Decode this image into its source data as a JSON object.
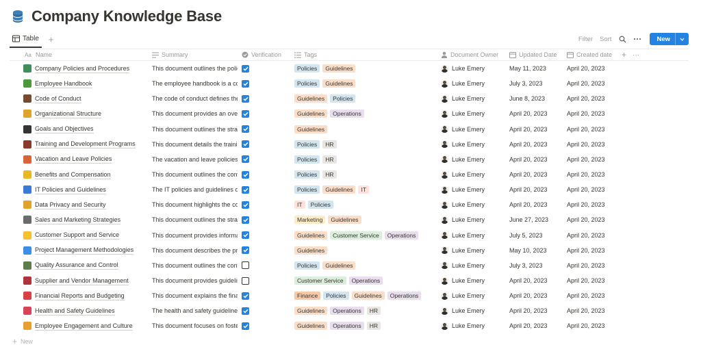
{
  "page": {
    "title": "Company Knowledge Base",
    "icon": "database-icon"
  },
  "viewbar": {
    "tab_label": "Table",
    "add_view": "+",
    "filter": "Filter",
    "sort": "Sort",
    "new_label": "New",
    "new_caret": "⌄"
  },
  "columns": {
    "name": "Name",
    "summary": "Summary",
    "verification": "Verification",
    "tags": "Tags",
    "owner": "Document Owner",
    "updated": "Updated Date",
    "created": "Created date",
    "add": "+",
    "more": "···"
  },
  "tag_colors": {
    "Policies": "#d3e5ef",
    "Guidelines": "#fadec9",
    "Operations": "#e8deee",
    "HR": "#e9e5e3",
    "IT": "#ffe2dd",
    "Marketing": "#fdecc8",
    "Customer Service": "#dbeddb",
    "Finance": "#f5c8a8"
  },
  "rows": [
    {
      "name": "Company Policies and Procedures",
      "emoji_color": "#3f8f5a",
      "summary": "This document outlines the policies",
      "verified": true,
      "tags": [
        "Policies",
        "Guidelines"
      ],
      "owner": "Luke Emery",
      "updated": "May 11, 2023",
      "created": "April 20, 2023"
    },
    {
      "name": "Employee Handbook",
      "emoji_color": "#4e9a3b",
      "summary": "The employee handbook is a comprehensive",
      "verified": true,
      "tags": [
        "Policies",
        "Guidelines"
      ],
      "owner": "Luke Emery",
      "updated": "July 3, 2023",
      "created": "April 20, 2023"
    },
    {
      "name": "Code of Conduct",
      "emoji_color": "#7a4a2e",
      "summary": "The code of conduct defines the",
      "verified": true,
      "tags": [
        "Guidelines",
        "Policies"
      ],
      "owner": "Luke Emery",
      "updated": "June 8, 2023",
      "created": "April 20, 2023"
    },
    {
      "name": "Organizational Structure",
      "emoji_color": "#e0a32b",
      "summary": "This document provides an overview",
      "verified": true,
      "tags": [
        "Guidelines",
        "Operations"
      ],
      "owner": "Luke Emery",
      "updated": "April 20, 2023",
      "created": "April 20, 2023"
    },
    {
      "name": "Goals and Objectives",
      "emoji_color": "#333333",
      "summary": "This document outlines the strategic",
      "verified": true,
      "tags": [
        "Guidelines"
      ],
      "owner": "Luke Emery",
      "updated": "April 20, 2023",
      "created": "April 20, 2023"
    },
    {
      "name": "Training and Development Programs",
      "emoji_color": "#8a3b2a",
      "summary": "This document details the training",
      "verified": true,
      "tags": [
        "Policies",
        "HR"
      ],
      "owner": "Luke Emery",
      "updated": "April 20, 2023",
      "created": "April 20, 2023"
    },
    {
      "name": "Vacation and Leave Policies",
      "emoji_color": "#d9643a",
      "summary": "The vacation and leave policies",
      "verified": true,
      "tags": [
        "Policies",
        "HR"
      ],
      "owner": "Luke Emery",
      "updated": "April 20, 2023",
      "created": "April 20, 2023"
    },
    {
      "name": "Benefits and Compensation",
      "emoji_color": "#e8b923",
      "summary": "This document outlines the compensation",
      "verified": true,
      "tags": [
        "Policies",
        "HR"
      ],
      "owner": "Luke Emery",
      "updated": "April 20, 2023",
      "created": "April 20, 2023"
    },
    {
      "name": "IT Policies and Guidelines",
      "emoji_color": "#3a7bd5",
      "summary": "The IT policies and guidelines outline",
      "verified": true,
      "tags": [
        "Policies",
        "Guidelines",
        "IT"
      ],
      "owner": "Luke Emery",
      "updated": "April 20, 2023",
      "created": "April 20, 2023"
    },
    {
      "name": "Data Privacy and Security",
      "emoji_color": "#e0a32b",
      "summary": "This document highlights the company",
      "verified": true,
      "tags": [
        "IT",
        "Policies"
      ],
      "owner": "Luke Emery",
      "updated": "April 20, 2023",
      "created": "April 20, 2023"
    },
    {
      "name": "Sales and Marketing Strategies",
      "emoji_color": "#6b6b6b",
      "summary": "This document outlines the strategies",
      "verified": true,
      "tags": [
        "Marketing",
        "Guidelines"
      ],
      "owner": "Luke Emery",
      "updated": "June 27, 2023",
      "created": "April 20, 2023"
    },
    {
      "name": "Customer Support and Service",
      "emoji_color": "#f2c230",
      "summary": "This document provides information",
      "verified": true,
      "tags": [
        "Guidelines",
        "Customer Service",
        "Operations"
      ],
      "owner": "Luke Emery",
      "updated": "July 5, 2023",
      "created": "April 20, 2023"
    },
    {
      "name": "Project Management Methodologies",
      "emoji_color": "#3a8ee6",
      "summary": "This document describes the project",
      "verified": true,
      "tags": [
        "Guidelines"
      ],
      "owner": "Luke Emery",
      "updated": "May 10, 2023",
      "created": "April 20, 2023"
    },
    {
      "name": "Quality Assurance and Control",
      "emoji_color": "#5a7d4a",
      "summary": "This document outlines the controls",
      "verified": false,
      "tags": [
        "Policies",
        "Guidelines"
      ],
      "owner": "Luke Emery",
      "updated": "July 3, 2023",
      "created": "April 20, 2023"
    },
    {
      "name": "Supplier and Vendor Management",
      "emoji_color": "#b0323a",
      "summary": "This document provides guidelines",
      "verified": false,
      "tags": [
        "Customer Service",
        "Operations"
      ],
      "owner": "Luke Emery",
      "updated": "April 20, 2023",
      "created": "April 20, 2023"
    },
    {
      "name": "Financial Reports and Budgeting",
      "emoji_color": "#d94040",
      "summary": "This document explains the financial",
      "verified": true,
      "tags": [
        "Finance",
        "Policies",
        "Guidelines",
        "Operations"
      ],
      "owner": "Luke Emery",
      "updated": "April 20, 2023",
      "created": "April 20, 2023"
    },
    {
      "name": "Health and Safety Guidelines",
      "emoji_color": "#d9445a",
      "summary": "The health and safety guidelines",
      "verified": true,
      "tags": [
        "Guidelines",
        "Operations",
        "HR"
      ],
      "owner": "Luke Emery",
      "updated": "April 20, 2023",
      "created": "April 20, 2023"
    },
    {
      "name": "Employee Engagement and Culture",
      "emoji_color": "#e8a030",
      "summary": "This document focuses on fostering",
      "verified": true,
      "tags": [
        "Guidelines",
        "Operations",
        "HR"
      ],
      "owner": "Luke Emery",
      "updated": "April 20, 2023",
      "created": "April 20, 2023"
    }
  ],
  "footer": {
    "new_label": "New",
    "plus": "+"
  }
}
